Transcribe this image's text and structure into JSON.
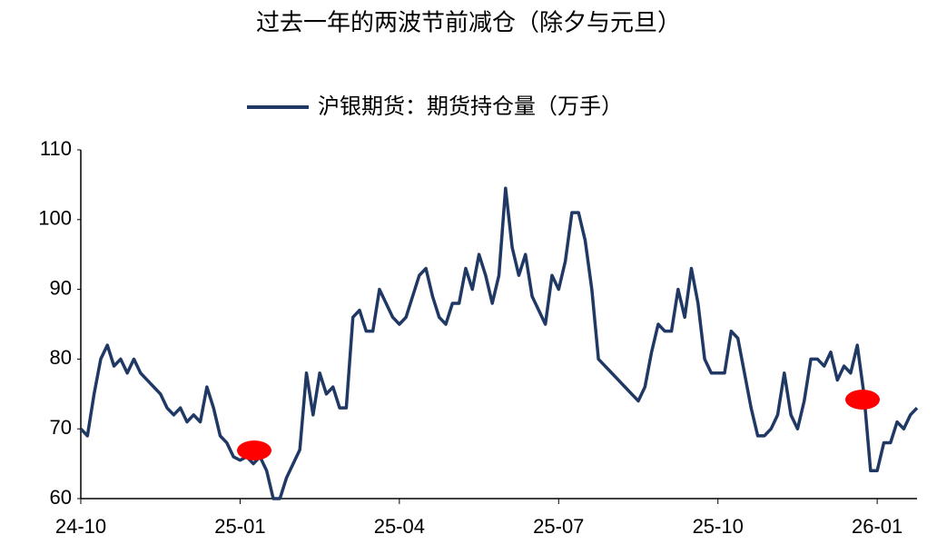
{
  "chart_data": {
    "type": "line",
    "title": "过去一年的两波节前减仓（除夕与元旦）",
    "categories": [
      "24-10",
      null,
      null,
      null,
      null,
      null,
      null,
      null,
      null,
      null,
      null,
      null,
      null,
      null,
      null,
      null,
      null,
      null,
      null,
      null,
      null,
      null,
      null,
      null,
      "25-01",
      null,
      null,
      null,
      null,
      null,
      null,
      null,
      null,
      null,
      null,
      null,
      null,
      null,
      null,
      null,
      null,
      null,
      null,
      null,
      null,
      null,
      null,
      null,
      "25-04",
      null,
      null,
      null,
      null,
      null,
      null,
      null,
      null,
      null,
      null,
      null,
      null,
      null,
      null,
      null,
      null,
      null,
      null,
      null,
      null,
      null,
      null,
      null,
      "25-07",
      null,
      null,
      null,
      null,
      null,
      null,
      null,
      null,
      null,
      null,
      null,
      null,
      null,
      null,
      null,
      null,
      null,
      null,
      null,
      null,
      null,
      null,
      null,
      "25-10",
      null,
      null,
      null,
      null,
      null,
      null,
      null,
      null,
      null,
      null,
      null,
      null,
      null,
      null,
      null,
      null,
      null,
      null,
      null,
      null,
      null,
      null,
      null,
      "26-01",
      null,
      null,
      null,
      null,
      null,
      null
    ],
    "series": [
      {
        "name": "沪银期货：期货持仓量（万手）",
        "color": "#1f3864",
        "values": [
          70,
          69,
          75,
          80,
          82,
          79,
          80,
          78,
          80,
          78,
          77,
          76,
          75,
          73,
          72,
          73,
          71,
          72,
          71,
          76,
          73,
          69,
          68,
          66,
          65.5,
          66,
          65,
          66,
          64,
          60,
          60,
          63,
          65,
          67,
          78,
          72,
          78,
          75,
          76,
          73,
          73,
          86,
          87,
          84,
          84,
          90,
          88,
          86,
          85,
          86,
          89,
          92,
          93,
          89,
          86,
          85,
          88,
          88,
          93,
          90,
          95,
          92,
          88,
          92,
          104.5,
          96,
          92,
          95,
          89,
          87,
          85,
          92,
          90,
          94,
          101,
          101,
          97,
          90,
          80,
          79,
          78,
          77,
          76,
          75,
          74,
          76,
          81,
          85,
          84,
          84,
          90,
          86,
          93,
          88,
          80,
          78,
          78,
          78,
          84,
          83,
          78,
          73,
          69,
          69,
          70,
          72,
          78,
          72,
          70,
          74,
          80,
          80,
          79,
          81,
          77,
          79,
          78,
          82,
          75,
          64,
          64,
          68,
          68,
          71,
          70,
          72,
          73
        ]
      }
    ],
    "ylim": [
      60,
      110
    ],
    "yticks": [
      60,
      70,
      80,
      90,
      100,
      110
    ],
    "grid": false,
    "legend": "top"
  }
}
